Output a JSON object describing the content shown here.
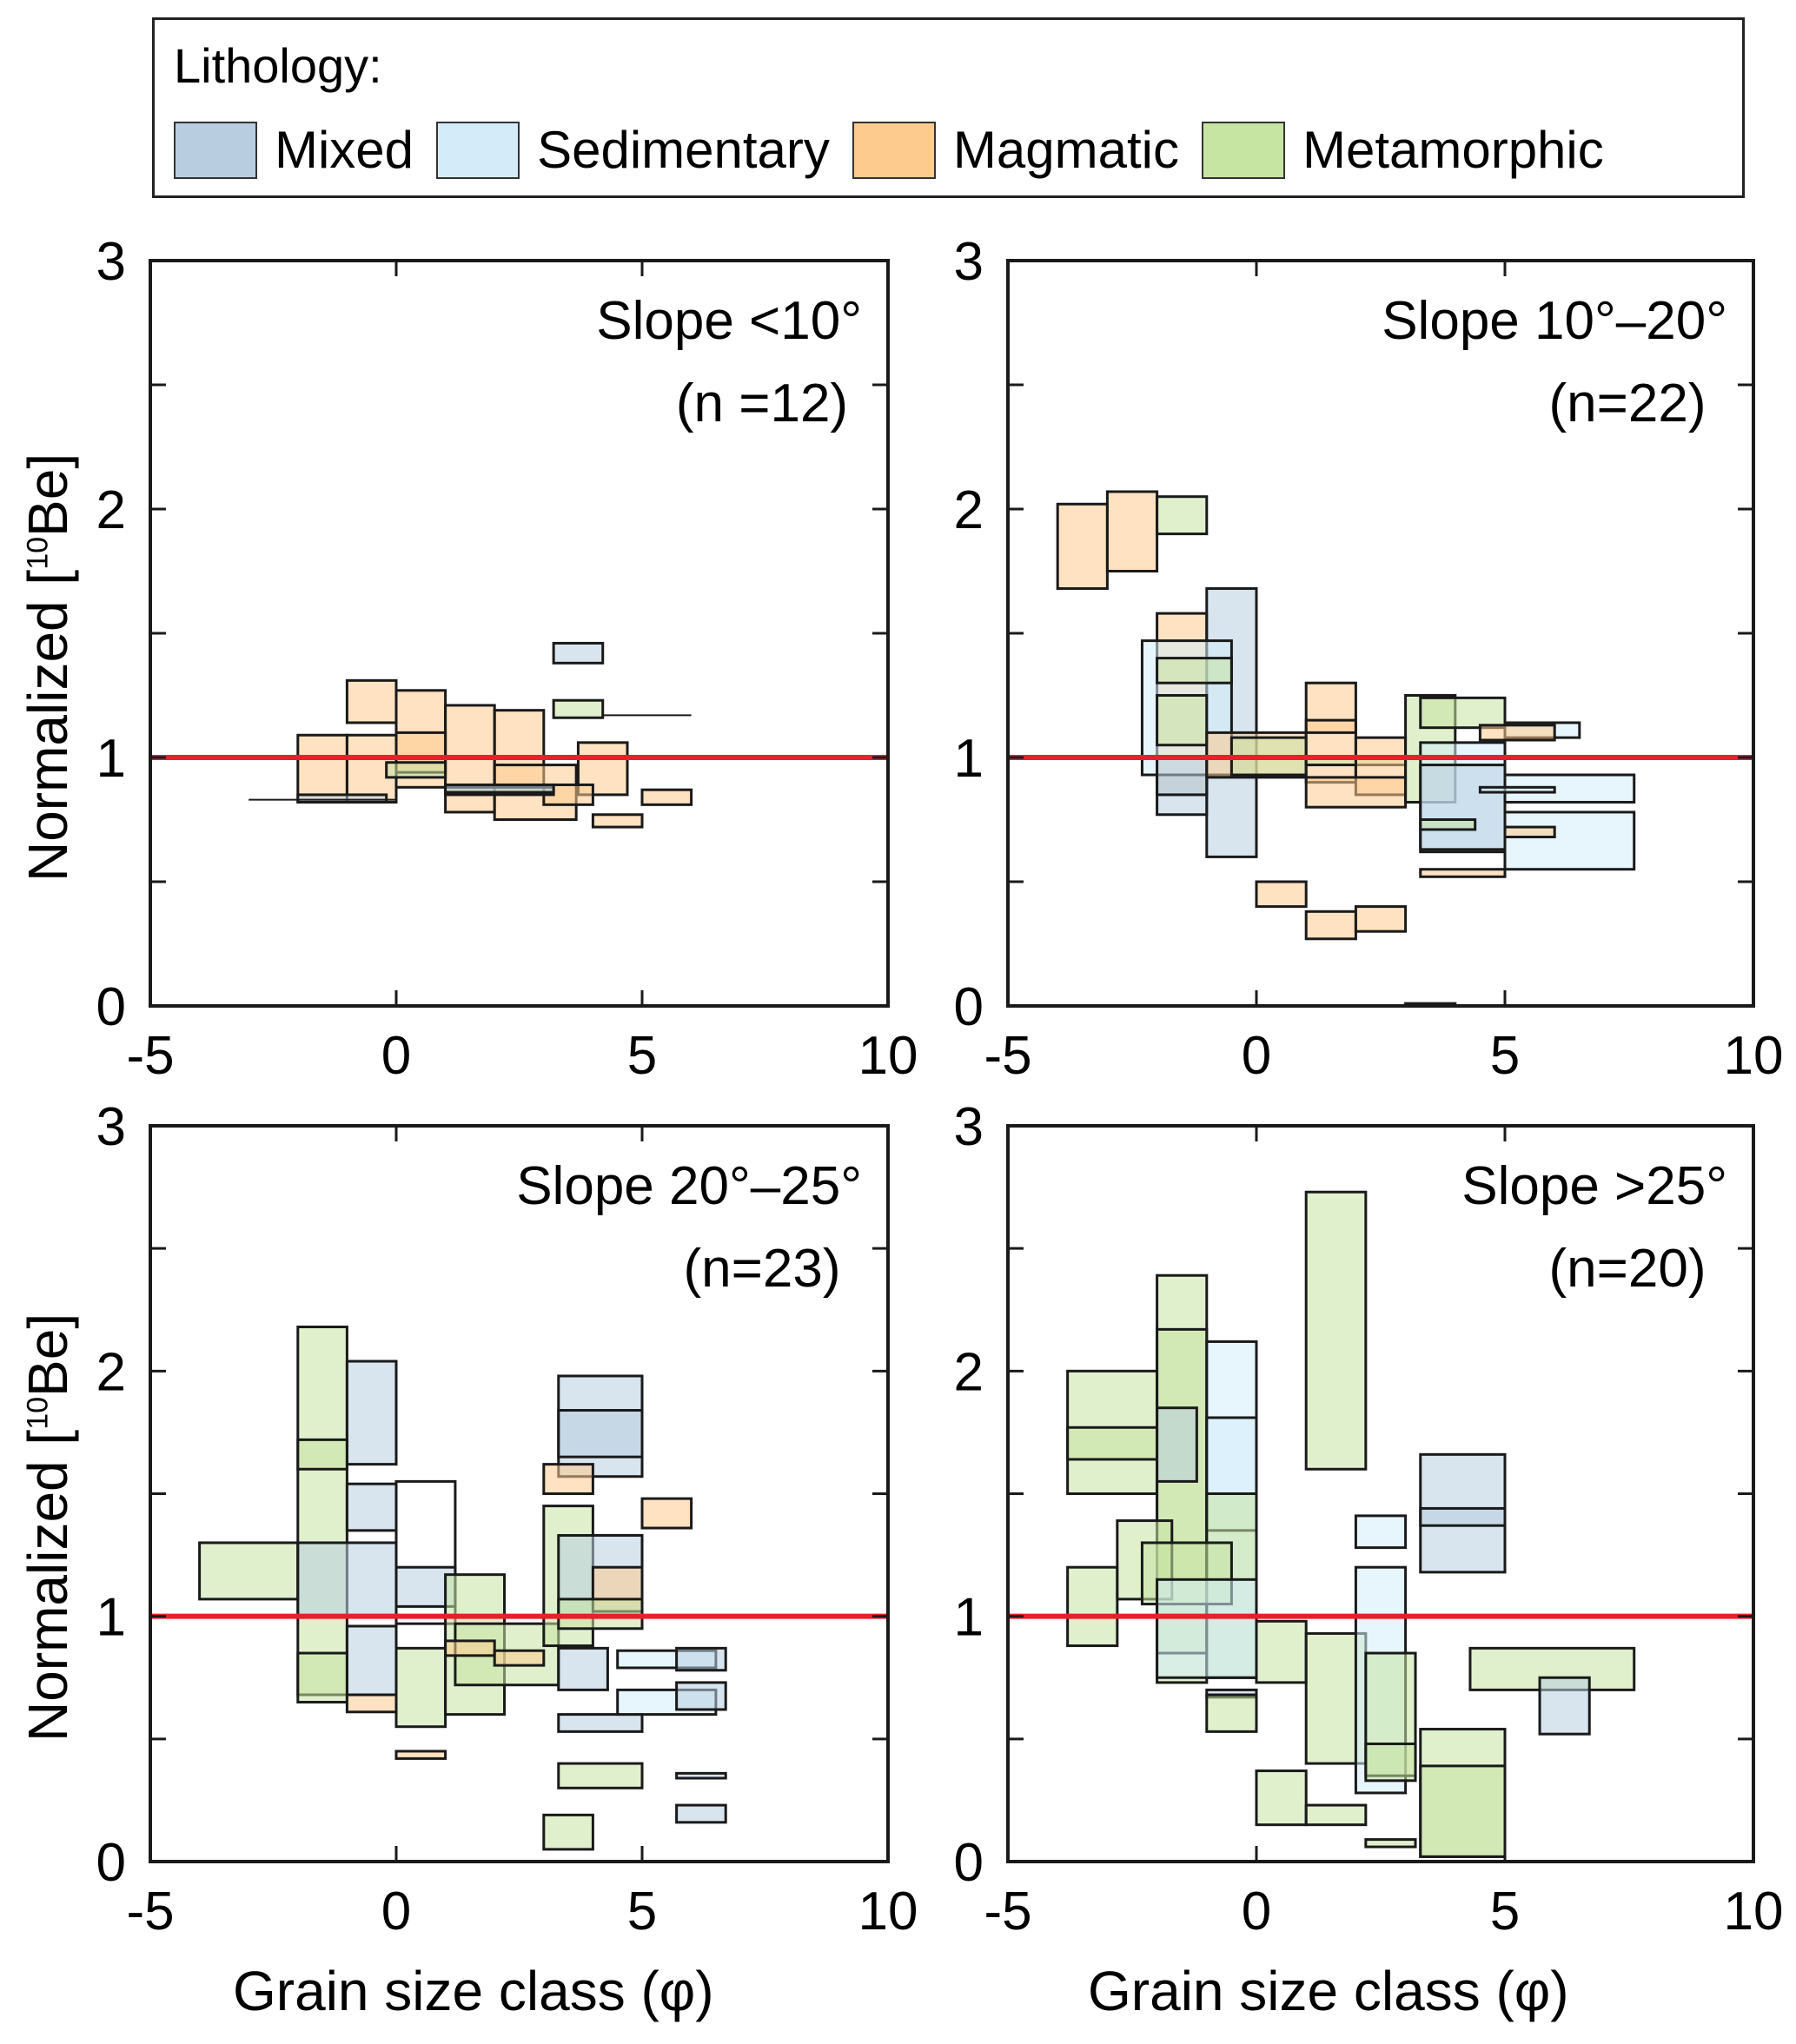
{
  "legend": {
    "title": "Lithology:",
    "items": [
      {
        "key": "mixed",
        "label": "Mixed",
        "color": "#b8cde0"
      },
      {
        "key": "sed",
        "label": "Sedimentary",
        "color": "#d4ecf9"
      },
      {
        "key": "mag",
        "label": "Magmatic",
        "color": "#fdcb8e"
      },
      {
        "key": "met",
        "label": "Metamorphic",
        "color": "#c6e4a2"
      }
    ]
  },
  "axis_labels": {
    "y_main": "Normalized [",
    "y_sup": "10",
    "y_end": "Be]",
    "x": "Grain size class (φ)"
  },
  "chart_data": [
    {
      "type": "box-rectangles",
      "title": "Slope <10°",
      "subtitle": "(n =12)",
      "xlim": [
        -5,
        10
      ],
      "ylim": [
        0,
        3
      ],
      "xticks": [
        -5,
        0,
        5,
        10
      ],
      "yticks": [
        0,
        1,
        2,
        3
      ],
      "reference_line": 1,
      "reference_color": "#e8202a",
      "rects": [
        [
          "mag",
          -1,
          0,
          1.14,
          1.31
        ],
        [
          "mag",
          0,
          1,
          0.88,
          1.27
        ],
        [
          "mag",
          1,
          2,
          0.78,
          1.21
        ],
        [
          "mag",
          2,
          3,
          0.86,
          1.19
        ],
        [
          "mag",
          -2,
          -1,
          0.82,
          1.09
        ],
        [
          "mag",
          -1,
          0,
          0.82,
          1.09
        ],
        [
          "mag",
          0,
          1,
          0.94,
          1.1
        ],
        [
          "mag",
          2,
          3.66,
          0.75,
          0.97
        ],
        [
          "mag",
          3.7,
          4.7,
          0.85,
          1.06
        ],
        [
          "mag",
          5,
          6,
          0.81,
          0.87
        ],
        [
          "mag",
          4,
          5,
          0.72,
          0.77
        ],
        [
          "mag",
          3,
          4,
          0.81,
          0.89
        ],
        [
          "mixed",
          3.2,
          4.2,
          1.38,
          1.46
        ],
        [
          "met",
          3.2,
          4.2,
          1.16,
          1.23
        ],
        [
          "met",
          1,
          3.2,
          0.85,
          0.88
        ],
        [
          "mixed",
          -2,
          -0.2,
          0.82,
          0.85
        ],
        [
          "met",
          -0.2,
          1,
          0.92,
          0.98
        ],
        [
          "mixed",
          1,
          3.2,
          0.86,
          0.89
        ]
      ],
      "lines": [
        [
          -3,
          0,
          0.83
        ],
        [
          4.2,
          6,
          1.17
        ]
      ]
    },
    {
      "type": "box-rectangles",
      "title": "Slope 10°–20°",
      "subtitle": "(n=22)",
      "xlim": [
        -5,
        10
      ],
      "ylim": [
        0,
        3
      ],
      "xticks": [
        -5,
        0,
        5,
        10
      ],
      "yticks": [
        0,
        1,
        2,
        3
      ],
      "reference_line": 1,
      "reference_color": "#e8202a",
      "rects": [
        [
          "mag",
          -4,
          -3,
          1.68,
          2.02
        ],
        [
          "mag",
          -3,
          -2,
          1.75,
          2.07
        ],
        [
          "met",
          -2,
          -1,
          1.9,
          2.05
        ],
        [
          "mag",
          -2,
          -1,
          0.85,
          1.58
        ],
        [
          "mixed",
          -1,
          0,
          0.6,
          1.68
        ],
        [
          "sed",
          -2.3,
          -0.5,
          0.93,
          1.47
        ],
        [
          "met",
          -2,
          -0.5,
          1.3,
          1.4
        ],
        [
          "met",
          -2,
          -1,
          1.05,
          1.25
        ],
        [
          "mixed",
          -2,
          -1,
          0.77,
          0.93
        ],
        [
          "mixed",
          -2,
          -1,
          0.85,
          1.0
        ],
        [
          "mag",
          -1,
          1,
          0.92,
          1.1
        ],
        [
          "met",
          -0.5,
          1,
          0.93,
          1.08
        ],
        [
          "mag",
          1,
          2,
          0.9,
          1.3
        ],
        [
          "mag",
          1,
          2,
          1.1,
          1.15
        ],
        [
          "met",
          1,
          3,
          0.97,
          1.0
        ],
        [
          "mag",
          2,
          3,
          0.85,
          1.08
        ],
        [
          "mag",
          1,
          3,
          0.8,
          0.92
        ],
        [
          "met",
          3.0,
          4,
          0.82,
          1.25
        ],
        [
          "met",
          3.3,
          5,
          1.12,
          1.24
        ],
        [
          "sed",
          3.3,
          5,
          0.62,
          1.06
        ],
        [
          "mixed",
          3.3,
          5,
          0.63,
          0.97
        ],
        [
          "sed",
          5,
          6.5,
          1.08,
          1.14
        ],
        [
          "mag",
          4.5,
          6,
          1.07,
          1.13
        ],
        [
          "sed",
          5,
          7.6,
          0.82,
          0.93
        ],
        [
          "sed",
          5,
          7.6,
          0.55,
          0.78
        ],
        [
          "sed",
          4.5,
          6,
          0.86,
          0.88
        ],
        [
          "mag",
          5,
          6,
          0.68,
          0.72
        ],
        [
          "mag",
          3.3,
          5,
          0.52,
          0.55
        ],
        [
          "met",
          3.3,
          4.4,
          0.71,
          0.75
        ],
        [
          "mag",
          0,
          1,
          0.4,
          0.5
        ],
        [
          "mag",
          1,
          2,
          0.27,
          0.38
        ],
        [
          "mag",
          2,
          3,
          0.3,
          0.4
        ],
        [
          "mixed",
          3,
          4,
          0.0,
          0.01
        ]
      ],
      "lines": []
    },
    {
      "type": "box-rectangles",
      "title": "Slope 20°–25°",
      "subtitle": "(n=23)",
      "xlim": [
        -5,
        10
      ],
      "ylim": [
        0,
        3
      ],
      "xticks": [
        -5,
        0,
        5,
        10
      ],
      "yticks": [
        0,
        1,
        2,
        3
      ],
      "reference_line": 1,
      "reference_color": "#e8202a",
      "rects": [
        [
          "met",
          -4,
          -2,
          1.07,
          1.3
        ],
        [
          "met",
          -2,
          -1,
          0.68,
          2.18
        ],
        [
          "mixed",
          -1,
          0,
          1.62,
          2.04
        ],
        [
          "met",
          -2,
          -1,
          1.6,
          1.72
        ],
        [
          "mixed",
          -1,
          0,
          1.35,
          1.54
        ],
        [
          "none",
          0,
          1.2,
          0.97,
          1.55
        ],
        [
          "mixed",
          -2,
          0,
          1.0,
          1.3
        ],
        [
          "mixed",
          0,
          1.2,
          1.04,
          1.2
        ],
        [
          "mixed",
          -1,
          0,
          0.68,
          0.96
        ],
        [
          "met",
          -2,
          -1,
          0.65,
          0.85
        ],
        [
          "mag",
          -1,
          0,
          0.61,
          0.68
        ],
        [
          "met",
          0,
          1,
          0.55,
          0.87
        ],
        [
          "mag",
          0,
          1,
          0.42,
          0.45
        ],
        [
          "met",
          1,
          2.2,
          0.6,
          1.17
        ],
        [
          "met",
          1.2,
          3.3,
          0.72,
          0.97
        ],
        [
          "mag",
          1,
          2,
          0.84,
          0.9
        ],
        [
          "mag",
          2,
          3,
          0.8,
          0.86
        ],
        [
          "mixed",
          3.3,
          5,
          0.53,
          0.6
        ],
        [
          "mixed",
          3.3,
          5,
          1.57,
          1.98
        ],
        [
          "mixed",
          3.3,
          5,
          1.65,
          1.84
        ],
        [
          "mag",
          3,
          4,
          1.5,
          1.62
        ],
        [
          "met",
          3,
          4,
          0.88,
          1.45
        ],
        [
          "mixed",
          3.3,
          5,
          1.0,
          1.33
        ],
        [
          "mag",
          4,
          5,
          1.02,
          1.2
        ],
        [
          "met",
          3.3,
          5,
          0.95,
          1.07
        ],
        [
          "mag",
          5,
          6,
          1.36,
          1.48
        ],
        [
          "mixed",
          3.3,
          4.3,
          0.7,
          0.87
        ],
        [
          "sed",
          4.5,
          6.5,
          0.79,
          0.86
        ],
        [
          "mixed",
          5.7,
          6.7,
          0.78,
          0.87
        ],
        [
          "sed",
          4.5,
          6.5,
          0.6,
          0.7
        ],
        [
          "mixed",
          5.7,
          6.7,
          0.62,
          0.73
        ],
        [
          "met",
          3.3,
          5,
          0.3,
          0.4
        ],
        [
          "mixed",
          5.7,
          6.7,
          0.34,
          0.36
        ],
        [
          "met",
          3,
          4,
          0.05,
          0.19
        ],
        [
          "mixed",
          5.7,
          6.7,
          0.16,
          0.23
        ]
      ],
      "lines": []
    },
    {
      "type": "box-rectangles",
      "title": "Slope >25°",
      "subtitle": "(n=20)",
      "xlim": [
        -5,
        10
      ],
      "ylim": [
        0,
        3
      ],
      "xticks": [
        -5,
        0,
        5,
        10
      ],
      "yticks": [
        0,
        1,
        2,
        3
      ],
      "reference_line": 1,
      "reference_color": "#e8202a",
      "rects": [
        [
          "met",
          -3.8,
          -2,
          1.5,
          2.0
        ],
        [
          "met",
          -3.8,
          -2,
          1.64,
          1.77
        ],
        [
          "met",
          -2,
          -1,
          0.73,
          2.39
        ],
        [
          "met",
          -2,
          -1,
          0.85,
          2.17
        ],
        [
          "mixed",
          -2,
          -1.2,
          1.55,
          1.85
        ],
        [
          "sed",
          -1,
          0,
          0.75,
          2.12
        ],
        [
          "sed",
          -1,
          0,
          1.35,
          1.81
        ],
        [
          "met",
          -1,
          0,
          0.75,
          1.5
        ],
        [
          "met",
          -3.8,
          -2.8,
          0.88,
          1.2
        ],
        [
          "met",
          -2.8,
          -1.7,
          1.07,
          1.39
        ],
        [
          "met",
          -2.3,
          -0.5,
          1.05,
          1.3
        ],
        [
          "sed",
          -2,
          0,
          0.75,
          1.15
        ],
        [
          "mixed",
          -1,
          0,
          0.67,
          0.7
        ],
        [
          "met",
          -1,
          0,
          0.53,
          0.68
        ],
        [
          "met",
          0,
          1,
          0.73,
          0.98
        ],
        [
          "met",
          1,
          2.2,
          0.4,
          0.93
        ],
        [
          "met",
          1,
          2.2,
          1.6,
          2.73
        ],
        [
          "sed",
          2,
          3,
          1.28,
          1.41
        ],
        [
          "sed",
          2,
          3,
          0.28,
          1.2
        ],
        [
          "met",
          2.2,
          3.2,
          0.35,
          0.85
        ],
        [
          "met",
          2.2,
          3.2,
          0.33,
          0.48
        ],
        [
          "mixed",
          3.3,
          5,
          1.18,
          1.66
        ],
        [
          "mixed",
          3.3,
          5,
          1.37,
          1.44
        ],
        [
          "met",
          4.3,
          7.6,
          0.7,
          0.87
        ],
        [
          "mixed",
          5.7,
          6.7,
          0.52,
          0.75
        ],
        [
          "met",
          3.3,
          5,
          0.02,
          0.54
        ],
        [
          "met",
          3.3,
          5,
          0.02,
          0.39
        ],
        [
          "met",
          0,
          1,
          0.15,
          0.37
        ],
        [
          "met",
          1,
          2.2,
          0.15,
          0.23
        ],
        [
          "met",
          2.2,
          3.2,
          0.06,
          0.09
        ]
      ],
      "lines": []
    }
  ]
}
